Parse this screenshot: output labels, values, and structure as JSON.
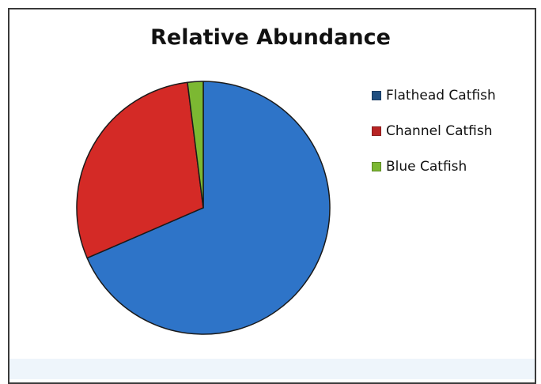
{
  "chart_data": {
    "type": "pie",
    "title": "Relative Abundance",
    "legend_position": "right",
    "slices": [
      {
        "label": "Flathead Catfish",
        "value": 68.5,
        "color": "#2e74c8"
      },
      {
        "label": "Channel Catfish",
        "value": 29.5,
        "color": "#d42a26"
      },
      {
        "label": "Blue Catfish",
        "value": 2.0,
        "color": "#7cb832"
      }
    ],
    "legend": [
      {
        "label": "Flathead Catfish",
        "color": "#1f4e80"
      },
      {
        "label": "Channel Catfish",
        "color": "#b82424"
      },
      {
        "label": "Blue Catfish",
        "color": "#7cb832"
      }
    ]
  }
}
